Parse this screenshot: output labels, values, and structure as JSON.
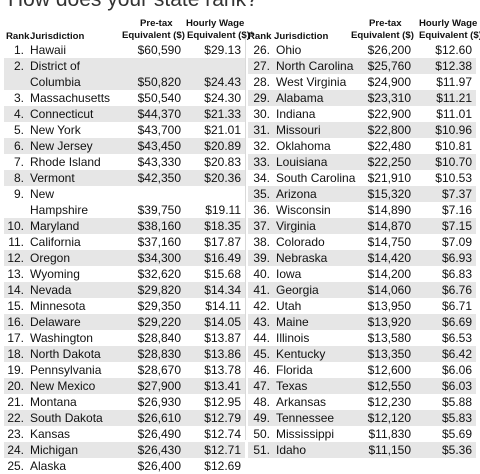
{
  "title": "How does your state rank?",
  "headers": {
    "rank": "Rank",
    "jurisdiction": "Jurisdiction",
    "pretax_line1": "Pre-tax",
    "pretax_line2": "Equivalent ($)",
    "hourly_line1": "Hourly Wage",
    "hourly_line2": "Equivalent ($)*"
  },
  "left_rows": [
    {
      "rank": "1.",
      "name": "Hawaii",
      "pretax": "$60,590",
      "hourly": "$29.13"
    },
    {
      "rank": "2.",
      "name": "District of",
      "name2": "Columbia",
      "pretax": "$50,820",
      "hourly": "$24.43"
    },
    {
      "rank": "3.",
      "name": "Massachusetts",
      "pretax": "$50,540",
      "hourly": "$24.30"
    },
    {
      "rank": "4.",
      "name": "Connecticut",
      "pretax": "$44,370",
      "hourly": "$21.33"
    },
    {
      "rank": "5.",
      "name": "New York",
      "pretax": "$43,700",
      "hourly": "$21.01"
    },
    {
      "rank": "6.",
      "name": "New Jersey",
      "pretax": "$43,450",
      "hourly": "$20.89"
    },
    {
      "rank": "7.",
      "name": "Rhode Island",
      "pretax": "$43,330",
      "hourly": "$20.83"
    },
    {
      "rank": "8.",
      "name": "Vermont",
      "pretax": "$42,350",
      "hourly": "$20.36"
    },
    {
      "rank": "9.",
      "name": "New",
      "name2": "Hampshire",
      "pretax": "$39,750",
      "hourly": "$19.11"
    },
    {
      "rank": "10.",
      "name": "Maryland",
      "pretax": "$38,160",
      "hourly": "$18.35"
    },
    {
      "rank": "11.",
      "name": "California",
      "pretax": "$37,160",
      "hourly": "$17.87"
    },
    {
      "rank": "12.",
      "name": "Oregon",
      "pretax": "$34,300",
      "hourly": "$16.49"
    },
    {
      "rank": "13.",
      "name": "Wyoming",
      "pretax": "$32,620",
      "hourly": "$15.68"
    },
    {
      "rank": "14.",
      "name": "Nevada",
      "pretax": "$29,820",
      "hourly": "$14.34"
    },
    {
      "rank": "15.",
      "name": "Minnesota",
      "pretax": "$29,350",
      "hourly": "$14.11"
    },
    {
      "rank": "16.",
      "name": "Delaware",
      "pretax": "$29,220",
      "hourly": "$14.05"
    },
    {
      "rank": "17.",
      "name": "Washington",
      "pretax": "$28,840",
      "hourly": "$13.87"
    },
    {
      "rank": "18.",
      "name": "North Dakota",
      "pretax": "$28,830",
      "hourly": "$13.86"
    },
    {
      "rank": "19.",
      "name": "Pennsylvania",
      "pretax": "$28,670",
      "hourly": "$13.78"
    },
    {
      "rank": "20.",
      "name": "New Mexico",
      "pretax": "$27,900",
      "hourly": "$13.41"
    },
    {
      "rank": "21.",
      "name": "Montana",
      "pretax": "$26,930",
      "hourly": "$12.95"
    },
    {
      "rank": "22.",
      "name": "South Dakota",
      "pretax": "$26,610",
      "hourly": "$12.79"
    },
    {
      "rank": "23.",
      "name": "Kansas",
      "pretax": "$26,490",
      "hourly": "$12.74"
    },
    {
      "rank": "24.",
      "name": "Michigan",
      "pretax": "$26,430",
      "hourly": "$12.71"
    },
    {
      "rank": "25.",
      "name": "Alaska",
      "pretax": "$26,400",
      "hourly": "$12.69"
    }
  ],
  "right_rows": [
    {
      "rank": "26.",
      "name": "Ohio",
      "pretax": "$26,200",
      "hourly": "$12.60"
    },
    {
      "rank": "27.",
      "name": "North Carolina",
      "pretax": "$25,760",
      "hourly": "$12.38"
    },
    {
      "rank": "28.",
      "name": "West Virginia",
      "pretax": "$24,900",
      "hourly": "$11.97"
    },
    {
      "rank": "29.",
      "name": "Alabama",
      "pretax": "$23,310",
      "hourly": "$11.21"
    },
    {
      "rank": "30.",
      "name": "Indiana",
      "pretax": "$22,900",
      "hourly": "$11.01"
    },
    {
      "rank": "31.",
      "name": "Missouri",
      "pretax": "$22,800",
      "hourly": "$10.96"
    },
    {
      "rank": "32.",
      "name": "Oklahoma",
      "pretax": "$22,480",
      "hourly": "$10.81"
    },
    {
      "rank": "33.",
      "name": "Louisiana",
      "pretax": "$22,250",
      "hourly": "$10.70"
    },
    {
      "rank": "34.",
      "name": "South Carolina",
      "pretax": "$21,910",
      "hourly": "$10.53"
    },
    {
      "rank": "35.",
      "name": "Arizona",
      "pretax": "$15,320",
      "hourly": "$7.37"
    },
    {
      "rank": "36.",
      "name": "Wisconsin",
      "pretax": "$14,890",
      "hourly": "$7.16"
    },
    {
      "rank": "37.",
      "name": "Virginia",
      "pretax": "$14,870",
      "hourly": "$7.15"
    },
    {
      "rank": "38.",
      "name": "Colorado",
      "pretax": "$14,750",
      "hourly": "$7.09"
    },
    {
      "rank": "39.",
      "name": "Nebraska",
      "pretax": "$14,420",
      "hourly": "$6.93"
    },
    {
      "rank": "40.",
      "name": "Iowa",
      "pretax": "$14,200",
      "hourly": "$6.83"
    },
    {
      "rank": "41.",
      "name": "Georgia",
      "pretax": "$14,060",
      "hourly": "$6.76"
    },
    {
      "rank": "42.",
      "name": "Utah",
      "pretax": "$13,950",
      "hourly": "$6.71"
    },
    {
      "rank": "43.",
      "name": "Maine",
      "pretax": "$13,920",
      "hourly": "$6.69"
    },
    {
      "rank": "44.",
      "name": "Illinois",
      "pretax": "$13,580",
      "hourly": "$6.53"
    },
    {
      "rank": "45.",
      "name": "Kentucky",
      "pretax": "$13,350",
      "hourly": "$6.42"
    },
    {
      "rank": "46.",
      "name": "Florida",
      "pretax": "$12,600",
      "hourly": "$6.06"
    },
    {
      "rank": "47.",
      "name": "Texas",
      "pretax": "$12,550",
      "hourly": "$6.03"
    },
    {
      "rank": "48.",
      "name": "Arkansas",
      "pretax": "$12,230",
      "hourly": "$5.88"
    },
    {
      "rank": "49.",
      "name": "Tennessee",
      "pretax": "$12,120",
      "hourly": "$5.83"
    },
    {
      "rank": "50.",
      "name": "Mississippi",
      "pretax": "$11,830",
      "hourly": "$5.69"
    },
    {
      "rank": "51.",
      "name": "Idaho",
      "pretax": "$11,150",
      "hourly": "$5.36"
    }
  ]
}
